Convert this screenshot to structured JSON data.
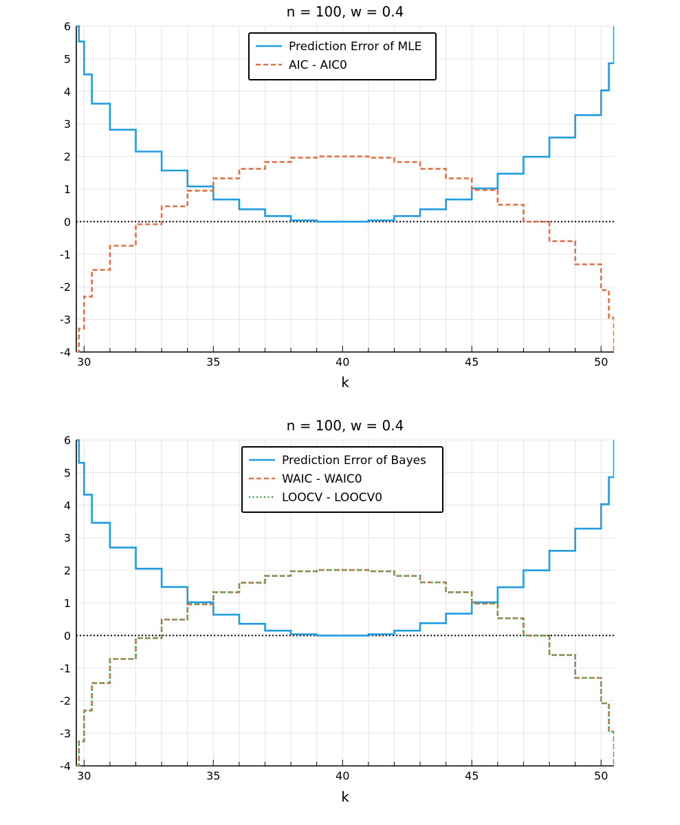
{
  "chart_data": [
    {
      "type": "line",
      "step": true,
      "title": "n = 100,  w = 0.4",
      "xlabel": "k",
      "ylabel": "",
      "xlim": [
        29.7,
        50.5
      ],
      "ylim": [
        -4,
        6
      ],
      "xticks": [
        30,
        35,
        40,
        45,
        50
      ],
      "yticks": [
        6,
        5,
        4,
        3,
        2,
        1,
        0,
        -1,
        -2,
        -3,
        -4
      ],
      "grid": true,
      "legend_position": "top",
      "reference_line": {
        "y": 0,
        "style": "dotted",
        "color": "#000000"
      },
      "series": [
        {
          "name": "Prediction Error of MLE",
          "color": "#1f9be0",
          "dash": "solid",
          "x": [
            29.7,
            29.8,
            30,
            30.3,
            31,
            32,
            33,
            34,
            35,
            36,
            37,
            38,
            39,
            40,
            41,
            42,
            43,
            44,
            45,
            46,
            47,
            48,
            49,
            50,
            50.3,
            50.5
          ],
          "y": [
            6,
            5.53,
            4.52,
            3.62,
            2.82,
            2.15,
            1.57,
            1.08,
            0.68,
            0.38,
            0.17,
            0.04,
            0.0,
            0.0,
            0.04,
            0.17,
            0.38,
            0.68,
            1.02,
            1.47,
            1.99,
            2.58,
            3.27,
            4.03,
            4.86,
            6
          ]
        },
        {
          "name": "AIC - AIC0",
          "color": "#e26f46",
          "dash": "dashed",
          "x": [
            29.7,
            29.8,
            30,
            30.3,
            31,
            32,
            33,
            34,
            35,
            36,
            37,
            38,
            39,
            40,
            41,
            42,
            43,
            44,
            45,
            46,
            47,
            48,
            49,
            50,
            50.3,
            50.5
          ],
          "y": [
            -4,
            -3.28,
            -2.3,
            -1.48,
            -0.74,
            -0.08,
            0.47,
            0.95,
            1.33,
            1.62,
            1.83,
            1.96,
            2.0,
            2.0,
            1.96,
            1.83,
            1.62,
            1.33,
            0.97,
            0.52,
            0.0,
            -0.6,
            -1.31,
            -2.1,
            -2.95,
            -4
          ]
        }
      ]
    },
    {
      "type": "line",
      "step": true,
      "title": "n = 100,  w = 0.4",
      "xlabel": "k",
      "ylabel": "",
      "xlim": [
        29.7,
        50.5
      ],
      "ylim": [
        -4,
        6
      ],
      "xticks": [
        30,
        35,
        40,
        45,
        50
      ],
      "yticks": [
        6,
        5,
        4,
        3,
        2,
        1,
        0,
        -1,
        -2,
        -3,
        -4
      ],
      "grid": true,
      "legend_position": "top",
      "reference_line": {
        "y": 0,
        "style": "dotted",
        "color": "#000000"
      },
      "series": [
        {
          "name": "Prediction Error of Bayes",
          "color": "#1f9be0",
          "dash": "solid",
          "x": [
            29.7,
            29.8,
            30,
            30.3,
            31,
            32,
            33,
            34,
            35,
            36,
            37,
            38,
            39,
            40,
            41,
            42,
            43,
            44,
            45,
            46,
            47,
            48,
            49,
            50,
            50.3,
            50.5
          ],
          "y": [
            6,
            5.3,
            4.32,
            3.46,
            2.7,
            2.05,
            1.49,
            1.02,
            0.64,
            0.36,
            0.15,
            0.04,
            0.0,
            0.0,
            0.04,
            0.15,
            0.38,
            0.67,
            1.02,
            1.48,
            2.0,
            2.6,
            3.28,
            4.03,
            4.86,
            6
          ]
        },
        {
          "name": "WAIC - WAIC0",
          "color": "#e26f46",
          "dash": "dashed",
          "x": [
            29.7,
            29.8,
            30,
            30.3,
            31,
            32,
            33,
            34,
            35,
            36,
            37,
            38,
            39,
            40,
            41,
            42,
            43,
            44,
            45,
            46,
            47,
            48,
            49,
            50,
            50.3,
            50.5
          ],
          "y": [
            -4,
            -3.25,
            -2.3,
            -1.46,
            -0.72,
            -0.08,
            0.49,
            0.96,
            1.33,
            1.62,
            1.83,
            1.97,
            2.01,
            2.01,
            1.97,
            1.83,
            1.63,
            1.33,
            0.98,
            0.53,
            0.0,
            -0.6,
            -1.3,
            -2.08,
            -2.95,
            -4
          ]
        },
        {
          "name": "LOOCV - LOOCV0",
          "color": "#3ca150",
          "dash": "dotted",
          "x": [
            29.7,
            29.8,
            30,
            30.3,
            31,
            32,
            33,
            34,
            35,
            36,
            37,
            38,
            39,
            40,
            41,
            42,
            43,
            44,
            45,
            46,
            47,
            48,
            49,
            50,
            50.3,
            50.5
          ],
          "y": [
            -4,
            -3.25,
            -2.3,
            -1.46,
            -0.72,
            -0.08,
            0.49,
            0.96,
            1.33,
            1.62,
            1.83,
            1.97,
            2.01,
            2.01,
            1.97,
            1.83,
            1.63,
            1.33,
            0.98,
            0.53,
            0.0,
            -0.6,
            -1.3,
            -2.08,
            -2.95,
            -4
          ]
        }
      ]
    }
  ]
}
